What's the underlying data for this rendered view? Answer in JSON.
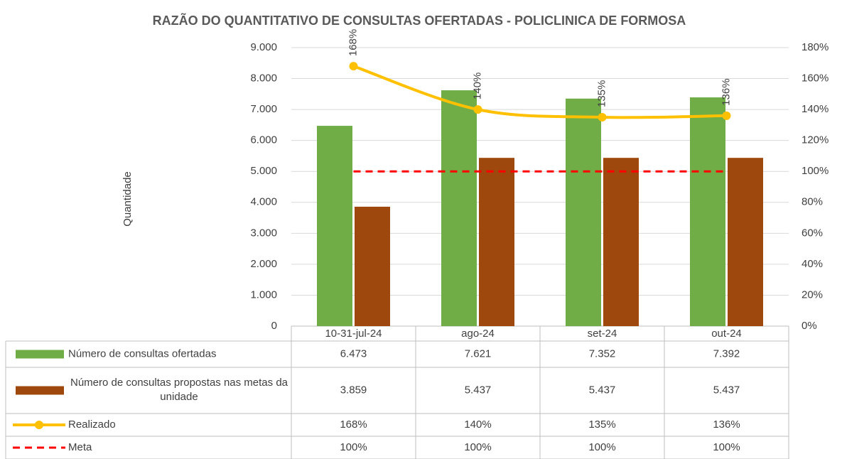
{
  "chart_data": {
    "type": "bar",
    "title": "RAZÃO DO QUANTITATIVO DE CONSULTAS OFERTADAS - POLICLINICA DE FORMOSA",
    "y_label": "Quantidade",
    "categories": [
      "10-31-jul-24",
      "ago-24",
      "set-24",
      "out-24"
    ],
    "series": [
      {
        "name": "Número de consultas ofertadas",
        "type": "bar",
        "color": "#70ad47",
        "values": [
          6473,
          7621,
          7352,
          7392
        ],
        "value_labels": [
          "6.473",
          "7.621",
          "7.352",
          "7.392"
        ]
      },
      {
        "name": "Número de consultas propostas nas metas da unidade",
        "type": "bar",
        "color": "#9e480e",
        "values": [
          3859,
          5437,
          5437,
          5437
        ],
        "value_labels": [
          "3.859",
          "5.437",
          "5.437",
          "5.437"
        ]
      },
      {
        "name": "Realizado",
        "type": "line",
        "axis": "y2",
        "color": "#ffc000",
        "values": [
          168,
          140,
          135,
          136
        ],
        "value_labels": [
          "168%",
          "140%",
          "135%",
          "136%"
        ]
      },
      {
        "name": "Meta",
        "type": "dashed",
        "axis": "y2",
        "color": "#ff0000",
        "values": [
          100,
          100,
          100,
          100
        ],
        "value_labels": [
          "100%",
          "100%",
          "100%",
          "100%"
        ]
      }
    ],
    "ylim": [
      0,
      9000
    ],
    "yticks": [
      0,
      {
        "value": 1000,
        "label": "1.000"
      },
      {
        "value": 2000,
        "label": "2.000"
      },
      {
        "value": 3000,
        "label": "3.000"
      },
      {
        "value": 4000,
        "label": "4.000"
      },
      {
        "value": 5000,
        "label": "5.000"
      },
      {
        "value": 6000,
        "label": "6.000"
      },
      {
        "value": 7000,
        "label": "7.000"
      },
      {
        "value": 8000,
        "label": "8.000"
      },
      {
        "value": 9000,
        "label": "9.000"
      }
    ],
    "y2lim": [
      0,
      180
    ],
    "y2ticks": [
      {
        "value": 0,
        "label": "0%"
      },
      {
        "value": 20,
        "label": "20%"
      },
      {
        "value": 40,
        "label": "40%"
      },
      {
        "value": 60,
        "label": "60%"
      },
      {
        "value": 80,
        "label": "80%"
      },
      {
        "value": 100,
        "label": "100%"
      },
      {
        "value": 120,
        "label": "120%"
      },
      {
        "value": 140,
        "label": "140%"
      },
      {
        "value": 160,
        "label": "160%"
      },
      {
        "value": 180,
        "label": "180%"
      }
    ],
    "grid": true
  }
}
